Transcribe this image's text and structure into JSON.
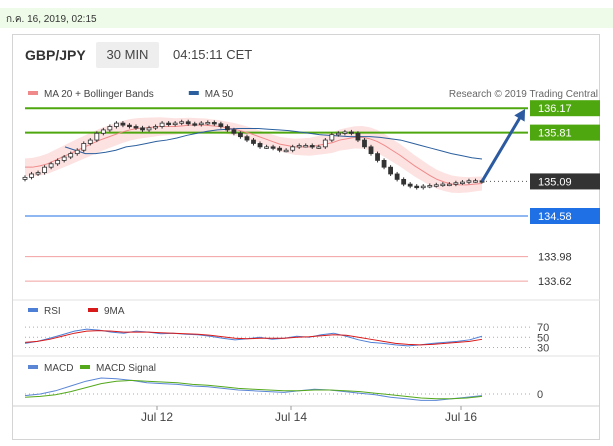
{
  "header": {
    "date_time": "ก.ค. 16, 2019, 02:15"
  },
  "instrument": {
    "pair": "GBP/JPY",
    "timeframe": "30 MIN",
    "time": "04:15:11 CET"
  },
  "colors": {
    "green": "#4ea70e",
    "blue_level": "#1f6fe5",
    "red_level": "#f2a0a0",
    "price": "#333333",
    "ma20": "#f08a8a",
    "ma50": "#2b5f9e",
    "band": "#fde2e2",
    "rsi": "#4d7fd6",
    "rsi9": "#d81a1a",
    "macd": "#5b86d6",
    "signal": "#54a81c",
    "arrow": "#2b5aa0"
  },
  "chart_data": [
    {
      "type": "candlestick",
      "legend": [
        {
          "name": "MA 20 + Bollinger Bands",
          "color": "#f08a8a"
        },
        {
          "name": "MA 50",
          "color": "#2b5f9e"
        }
      ],
      "credit": "Research © 2019 Trading Central",
      "ylim": [
        133.4,
        136.35
      ],
      "x_ticks": [
        "Jul 12",
        "Jul 14",
        "Jul 16"
      ],
      "levels": [
        {
          "label": "136.17",
          "value": 136.17,
          "color": "#4ea70e"
        },
        {
          "label": "135.81",
          "value": 135.81,
          "color": "#4ea70e"
        },
        {
          "label": "135.09",
          "value": 135.09,
          "color": "#333333"
        },
        {
          "label": "134.58",
          "value": 134.58,
          "color": "#1f6fe5"
        },
        {
          "label": "133.98",
          "value": 133.98,
          "color": "#f2a0a0"
        },
        {
          "label": "133.62",
          "value": 133.62,
          "color": "#f2a0a0"
        }
      ],
      "close": [
        135.15,
        135.2,
        135.22,
        135.3,
        135.35,
        135.4,
        135.45,
        135.5,
        135.55,
        135.65,
        135.7,
        135.8,
        135.85,
        135.9,
        135.95,
        135.92,
        135.9,
        135.88,
        135.85,
        135.88,
        135.9,
        135.95,
        135.93,
        135.95,
        135.97,
        135.94,
        135.93,
        135.95,
        135.96,
        135.94,
        135.9,
        135.85,
        135.8,
        135.75,
        135.7,
        135.65,
        135.6,
        135.6,
        135.58,
        135.55,
        135.55,
        135.6,
        135.62,
        135.62,
        135.6,
        135.6,
        135.7,
        135.78,
        135.8,
        135.82,
        135.8,
        135.7,
        135.6,
        135.5,
        135.4,
        135.3,
        135.2,
        135.12,
        135.05,
        135.02,
        135.0,
        135.02,
        135.03,
        135.04,
        135.05,
        135.05,
        135.07,
        135.08,
        135.1,
        135.1,
        135.09
      ],
      "ma20": [
        135.3,
        135.3,
        135.32,
        135.35,
        135.4,
        135.45,
        135.5,
        135.55,
        135.6,
        135.65,
        135.7,
        135.74,
        135.78,
        135.82,
        135.85,
        135.87,
        135.88,
        135.89,
        135.9,
        135.9,
        135.9,
        135.91,
        135.92,
        135.92,
        135.92,
        135.91,
        135.9,
        135.88,
        135.86,
        135.83,
        135.8,
        135.76,
        135.72,
        135.68,
        135.64,
        135.62,
        135.6,
        135.6,
        135.6,
        135.62,
        135.64,
        135.66,
        135.7,
        135.72,
        135.74,
        135.74,
        135.72,
        135.68,
        135.62,
        135.55,
        135.48,
        135.4,
        135.32,
        135.25,
        135.18,
        135.12,
        135.08,
        135.05,
        135.04,
        135.04,
        135.05,
        135.06
      ],
      "ma50": [
        135.6,
        135.55,
        135.5,
        135.5,
        135.52,
        135.55,
        135.6,
        135.62,
        135.65,
        135.68,
        135.7,
        135.73,
        135.77,
        135.8,
        135.83,
        135.85,
        135.86,
        135.87,
        135.87,
        135.87,
        135.86,
        135.85,
        135.84,
        135.82,
        135.8,
        135.78,
        135.77,
        135.76,
        135.75,
        135.75,
        135.75,
        135.74,
        135.72,
        135.7,
        135.66,
        135.62,
        135.58,
        135.54,
        135.5,
        135.47,
        135.44,
        135.42
      ],
      "forecast": [
        135.09,
        136.17
      ]
    },
    {
      "type": "line",
      "legend": [
        {
          "name": "RSI",
          "color": "#4d7fd6"
        },
        {
          "name": "9MA",
          "color": "#d81a1a"
        }
      ],
      "ylim": [
        25,
        80
      ],
      "y_ticks": [
        "70",
        "50",
        "30"
      ],
      "series": [
        {
          "name": "RSI",
          "values": [
            38,
            42,
            48,
            55,
            62,
            66,
            64,
            60,
            58,
            62,
            60,
            57,
            58,
            56,
            55,
            52,
            48,
            45,
            47,
            50,
            46,
            48,
            52,
            50,
            55,
            58,
            52,
            45,
            40,
            38,
            35,
            33,
            35,
            38,
            40,
            42,
            45,
            52
          ]
        },
        {
          "name": "9MA",
          "values": [
            40,
            42,
            46,
            52,
            58,
            62,
            63,
            62,
            60,
            60,
            60,
            59,
            58,
            57,
            56,
            54,
            51,
            48,
            47,
            48,
            48,
            48,
            50,
            51,
            53,
            55,
            54,
            50,
            46,
            42,
            38,
            36,
            35,
            36,
            38,
            40,
            42,
            46
          ]
        }
      ]
    },
    {
      "type": "line",
      "legend": [
        {
          "name": "MACD",
          "color": "#5b86d6"
        },
        {
          "name": "MACD Signal",
          "color": "#54a81c"
        }
      ],
      "ylim": [
        -0.1,
        0.25
      ],
      "y_ticks": [
        "0"
      ],
      "series": [
        {
          "name": "MACD",
          "values": [
            -0.02,
            0.0,
            0.04,
            0.1,
            0.16,
            0.2,
            0.19,
            0.17,
            0.14,
            0.13,
            0.12,
            0.1,
            0.09,
            0.07,
            0.05,
            0.04,
            0.03,
            0.02,
            0.04,
            0.06,
            0.05,
            0.03,
            0.01,
            -0.01,
            -0.04,
            -0.06,
            -0.08,
            -0.08,
            -0.06,
            -0.04,
            -0.02
          ]
        },
        {
          "name": "MACD Signal",
          "values": [
            -0.04,
            -0.03,
            -0.01,
            0.03,
            0.08,
            0.13,
            0.16,
            0.17,
            0.16,
            0.15,
            0.14,
            0.12,
            0.11,
            0.09,
            0.07,
            0.06,
            0.05,
            0.04,
            0.04,
            0.05,
            0.05,
            0.04,
            0.03,
            0.01,
            -0.01,
            -0.03,
            -0.05,
            -0.06,
            -0.06,
            -0.05,
            -0.03
          ]
        }
      ]
    }
  ]
}
